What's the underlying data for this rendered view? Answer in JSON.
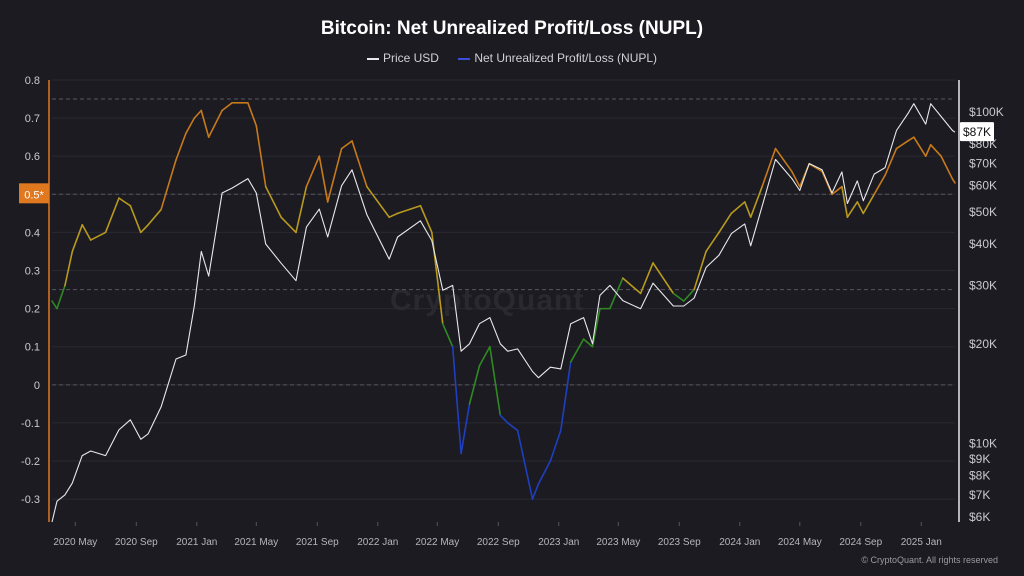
{
  "chart_data": {
    "type": "line",
    "title": "Bitcoin: Net Unrealized Profit/Loss (NUPL)",
    "legend": [
      {
        "name": "Price USD",
        "color": "#e8e8ec"
      },
      {
        "name": "Net Unrealized Profit/Loss (NUPL)",
        "color": "#3a4fd8"
      }
    ],
    "x_ticks": [
      "2020 May",
      "2020 Sep",
      "2021 Jan",
      "2021 May",
      "2021 Sep",
      "2022 Jan",
      "2022 May",
      "2022 Sep",
      "2023 Jan",
      "2023 May",
      "2023 Sep",
      "2024 Jan",
      "2024 May",
      "2024 Sep",
      "2025 Jan"
    ],
    "x_start": "2020-03-15",
    "x_end": "2025-03-10",
    "left_axis": {
      "ticks": [
        "0.8",
        "0.7",
        "0.6",
        "0.5",
        "0.4",
        "0.3",
        "0.2",
        "0.1",
        "0",
        "-0.1",
        "-0.2",
        "-0.3"
      ],
      "ylim": [
        -0.36,
        0.8
      ],
      "highlight": "0.5*"
    },
    "right_axis": {
      "ticks": [
        "$100K",
        "$80K",
        "$70K",
        "$60K",
        "$50K",
        "$40K",
        "$30K",
        "$20K",
        "$10K",
        "$9K",
        "$8K",
        "$7K",
        "$6K"
      ],
      "tick_values": [
        100000,
        80000,
        70000,
        60000,
        50000,
        40000,
        30000,
        20000,
        10000,
        9000,
        8000,
        7000,
        6000
      ],
      "scale": "log",
      "ylim": [
        5800,
        125000
      ],
      "current_label": "$87K"
    },
    "reference_lines": [
      0.75,
      0.5,
      0.25,
      0
    ],
    "nupl_color_bands": [
      {
        "min": 0.75,
        "color": "#c05a18"
      },
      {
        "min": 0.5,
        "color": "#c77a1a"
      },
      {
        "min": 0.25,
        "color": "#b89a1e"
      },
      {
        "min": 0,
        "color": "#2f8a22"
      },
      {
        "min": -1,
        "color": "#1f3fc0"
      }
    ],
    "nupl_series": {
      "name": "Net Unrealized Profit/Loss (NUPL)",
      "x": [
        "2020-03-15",
        "2020-03-25",
        "2020-04-10",
        "2020-04-25",
        "2020-05-15",
        "2020-06-01",
        "2020-07-01",
        "2020-07-28",
        "2020-08-20",
        "2020-09-10",
        "2020-09-25",
        "2020-10-21",
        "2020-11-20",
        "2020-12-10",
        "2020-12-27",
        "2021-01-10",
        "2021-01-25",
        "2021-02-21",
        "2021-03-13",
        "2021-04-14",
        "2021-05-01",
        "2021-05-20",
        "2021-06-20",
        "2021-07-20",
        "2021-08-10",
        "2021-09-05",
        "2021-09-22",
        "2021-10-20",
        "2021-11-10",
        "2021-12-10",
        "2022-01-24",
        "2022-02-10",
        "2022-03-28",
        "2022-04-20",
        "2022-05-12",
        "2022-06-01",
        "2022-06-18",
        "2022-07-05",
        "2022-07-25",
        "2022-08-15",
        "2022-09-05",
        "2022-09-20",
        "2022-10-10",
        "2022-11-09",
        "2022-11-21",
        "2022-12-15",
        "2023-01-05",
        "2023-01-25",
        "2023-02-20",
        "2023-03-10",
        "2023-03-25",
        "2023-04-14",
        "2023-05-10",
        "2023-06-15",
        "2023-07-10",
        "2023-08-20",
        "2023-09-10",
        "2023-10-01",
        "2023-10-25",
        "2023-11-20",
        "2023-12-15",
        "2024-01-11",
        "2024-01-23",
        "2024-02-15",
        "2024-03-13",
        "2024-04-15",
        "2024-05-01",
        "2024-05-20",
        "2024-06-15",
        "2024-07-05",
        "2024-07-25",
        "2024-08-05",
        "2024-08-25",
        "2024-09-06",
        "2024-09-28",
        "2024-10-20",
        "2024-11-12",
        "2024-12-05",
        "2024-12-17",
        "2025-01-10",
        "2025-01-20",
        "2025-02-10",
        "2025-03-05",
        "2025-03-10"
      ],
      "values": [
        0.22,
        0.2,
        0.26,
        0.35,
        0.42,
        0.38,
        0.4,
        0.49,
        0.47,
        0.4,
        0.42,
        0.46,
        0.59,
        0.66,
        0.7,
        0.72,
        0.65,
        0.72,
        0.74,
        0.74,
        0.68,
        0.52,
        0.44,
        0.4,
        0.52,
        0.6,
        0.48,
        0.62,
        0.64,
        0.52,
        0.44,
        0.45,
        0.47,
        0.4,
        0.16,
        0.1,
        -0.18,
        -0.05,
        0.05,
        0.1,
        -0.08,
        -0.1,
        -0.12,
        -0.3,
        -0.26,
        -0.2,
        -0.12,
        0.06,
        0.12,
        0.1,
        0.2,
        0.2,
        0.28,
        0.24,
        0.32,
        0.24,
        0.22,
        0.25,
        0.35,
        0.4,
        0.45,
        0.48,
        0.44,
        0.52,
        0.62,
        0.56,
        0.52,
        0.58,
        0.56,
        0.5,
        0.52,
        0.44,
        0.48,
        0.45,
        0.5,
        0.55,
        0.62,
        0.64,
        0.65,
        0.6,
        0.63,
        0.6,
        0.54,
        0.53
      ]
    },
    "price_series": {
      "name": "Price USD",
      "x": [
        "2020-03-15",
        "2020-03-25",
        "2020-04-10",
        "2020-04-25",
        "2020-05-15",
        "2020-06-01",
        "2020-07-01",
        "2020-07-28",
        "2020-08-20",
        "2020-09-10",
        "2020-09-25",
        "2020-10-21",
        "2020-11-20",
        "2020-12-10",
        "2020-12-27",
        "2021-01-10",
        "2021-01-25",
        "2021-02-21",
        "2021-03-13",
        "2021-04-14",
        "2021-05-01",
        "2021-05-20",
        "2021-06-20",
        "2021-07-20",
        "2021-08-10",
        "2021-09-05",
        "2021-09-22",
        "2021-10-20",
        "2021-11-10",
        "2021-12-10",
        "2022-01-24",
        "2022-02-10",
        "2022-03-28",
        "2022-04-20",
        "2022-05-12",
        "2022-06-01",
        "2022-06-18",
        "2022-07-05",
        "2022-07-25",
        "2022-08-15",
        "2022-09-05",
        "2022-09-20",
        "2022-10-10",
        "2022-11-09",
        "2022-11-21",
        "2022-12-15",
        "2023-01-05",
        "2023-01-25",
        "2023-02-20",
        "2023-03-10",
        "2023-03-25",
        "2023-04-14",
        "2023-05-10",
        "2023-06-15",
        "2023-07-10",
        "2023-08-20",
        "2023-09-10",
        "2023-10-01",
        "2023-10-25",
        "2023-11-20",
        "2023-12-15",
        "2024-01-11",
        "2024-01-23",
        "2024-02-15",
        "2024-03-13",
        "2024-04-15",
        "2024-05-01",
        "2024-05-20",
        "2024-06-15",
        "2024-07-05",
        "2024-07-25",
        "2024-08-05",
        "2024-08-25",
        "2024-09-06",
        "2024-09-28",
        "2024-10-20",
        "2024-11-12",
        "2024-12-05",
        "2024-12-17",
        "2025-01-10",
        "2025-01-20",
        "2025-02-10",
        "2025-03-05",
        "2025-03-10"
      ],
      "values": [
        5800,
        6700,
        7000,
        7600,
        9200,
        9500,
        9200,
        11000,
        11800,
        10300,
        10700,
        12900,
        18000,
        18500,
        26000,
        38000,
        32000,
        57000,
        59000,
        63000,
        57000,
        40000,
        35000,
        31000,
        45000,
        51000,
        42000,
        60000,
        67000,
        49000,
        36000,
        42000,
        47000,
        41000,
        29000,
        30000,
        19000,
        20000,
        23000,
        24000,
        20000,
        19000,
        19300,
        16500,
        15800,
        17000,
        16800,
        23000,
        24000,
        20000,
        28000,
        30000,
        27000,
        25500,
        30500,
        26000,
        26000,
        27500,
        34000,
        37000,
        43000,
        46000,
        39500,
        52000,
        72000,
        63000,
        58000,
        70000,
        67000,
        57000,
        66000,
        53000,
        62000,
        54000,
        65000,
        68000,
        88000,
        99000,
        106000,
        92000,
        106000,
        97000,
        88000,
        87000
      ]
    },
    "watermark": "CryptoQuant",
    "copyright": "© CryptoQuant. All rights reserved"
  }
}
